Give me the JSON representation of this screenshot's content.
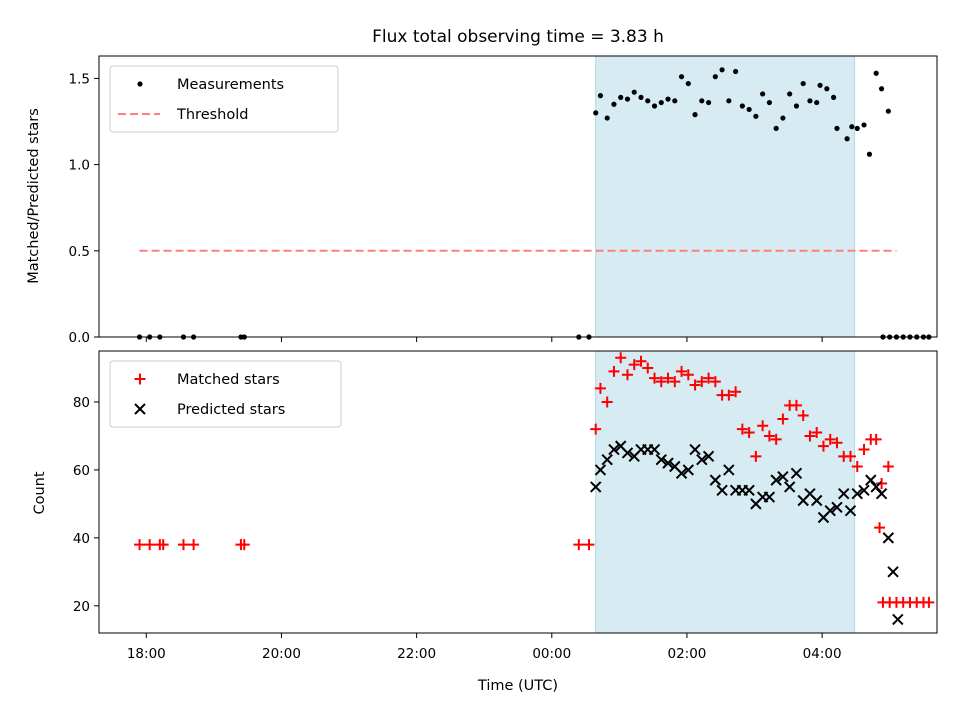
{
  "chart_data": [
    {
      "type": "scatter",
      "title": "Flux total observing time = 3.83 h",
      "xlabel": "",
      "ylabel": "Matched/Predicted stars",
      "xlim": [
        -0.7,
        11.7
      ],
      "ylim": [
        0,
        1.63
      ],
      "x_unit": "hours since 18:00 UTC",
      "yticks": [
        0.0,
        0.5,
        1.0,
        1.5
      ],
      "ytick_labels": [
        "0.0",
        "0.5",
        "1.0",
        "1.5"
      ],
      "shaded_region": [
        6.65,
        10.48
      ],
      "legend": {
        "position": "upper-left",
        "entries": [
          "Measurements",
          "Threshold"
        ]
      },
      "series": [
        {
          "name": "Measurements",
          "style": "dot",
          "color": "#000000",
          "points": [
            [
              -0.1,
              0
            ],
            [
              0.05,
              0
            ],
            [
              0.2,
              0
            ],
            [
              0.55,
              0
            ],
            [
              0.7,
              0
            ],
            [
              1.4,
              0
            ],
            [
              1.45,
              0
            ],
            [
              6.4,
              0
            ],
            [
              6.55,
              0
            ],
            [
              6.65,
              1.3
            ],
            [
              6.72,
              1.4
            ],
            [
              6.82,
              1.27
            ],
            [
              6.92,
              1.35
            ],
            [
              7.02,
              1.39
            ],
            [
              7.12,
              1.38
            ],
            [
              7.22,
              1.42
            ],
            [
              7.32,
              1.39
            ],
            [
              7.42,
              1.37
            ],
            [
              7.52,
              1.34
            ],
            [
              7.62,
              1.36
            ],
            [
              7.72,
              1.38
            ],
            [
              7.82,
              1.37
            ],
            [
              7.92,
              1.51
            ],
            [
              8.02,
              1.47
            ],
            [
              8.12,
              1.29
            ],
            [
              8.22,
              1.37
            ],
            [
              8.32,
              1.36
            ],
            [
              8.42,
              1.51
            ],
            [
              8.52,
              1.55
            ],
            [
              8.62,
              1.37
            ],
            [
              8.72,
              1.54
            ],
            [
              8.82,
              1.34
            ],
            [
              8.92,
              1.32
            ],
            [
              9.02,
              1.28
            ],
            [
              9.12,
              1.41
            ],
            [
              9.22,
              1.36
            ],
            [
              9.32,
              1.21
            ],
            [
              9.42,
              1.27
            ],
            [
              9.52,
              1.41
            ],
            [
              9.62,
              1.34
            ],
            [
              9.72,
              1.47
            ],
            [
              9.82,
              1.37
            ],
            [
              9.92,
              1.36
            ],
            [
              9.97,
              1.46
            ],
            [
              10.07,
              1.44
            ],
            [
              10.17,
              1.39
            ],
            [
              10.22,
              1.21
            ],
            [
              10.37,
              1.15
            ],
            [
              10.44,
              1.22
            ],
            [
              10.52,
              1.21
            ],
            [
              10.62,
              1.23
            ],
            [
              10.7,
              1.06
            ],
            [
              10.8,
              1.53
            ],
            [
              10.88,
              1.44
            ],
            [
              10.98,
              1.31
            ],
            [
              10.9,
              0
            ],
            [
              11.0,
              0
            ],
            [
              11.1,
              0
            ],
            [
              11.2,
              0
            ],
            [
              11.3,
              0
            ],
            [
              11.4,
              0
            ],
            [
              11.5,
              0
            ],
            [
              11.58,
              0
            ]
          ]
        },
        {
          "name": "Threshold",
          "style": "dashed-line",
          "color": "#ff7f7f",
          "points": [
            [
              -0.1,
              0.5
            ],
            [
              11.1,
              0.5
            ]
          ]
        }
      ]
    },
    {
      "type": "scatter",
      "title": "",
      "xlabel": "Time (UTC)",
      "ylabel": "Count",
      "xlim": [
        -0.7,
        11.7
      ],
      "ylim": [
        12,
        95
      ],
      "x_unit": "hours since 18:00 UTC",
      "xticks": [
        0,
        2,
        4,
        6,
        8,
        10
      ],
      "xtick_labels": [
        "18:00",
        "20:00",
        "22:00",
        "00:00",
        "02:00",
        "04:00"
      ],
      "yticks": [
        20,
        40,
        60,
        80
      ],
      "ytick_labels": [
        "20",
        "40",
        "60",
        "80"
      ],
      "shaded_region": [
        6.65,
        10.48
      ],
      "legend": {
        "position": "upper-left",
        "entries": [
          "Matched stars",
          "Predicted stars"
        ]
      },
      "series": [
        {
          "name": "Matched stars",
          "style": "plus",
          "color": "#ff0000",
          "points": [
            [
              -0.1,
              38
            ],
            [
              0.05,
              38
            ],
            [
              0.2,
              38
            ],
            [
              0.25,
              38
            ],
            [
              0.55,
              38
            ],
            [
              0.7,
              38
            ],
            [
              1.4,
              38
            ],
            [
              1.45,
              38
            ],
            [
              6.4,
              38
            ],
            [
              6.55,
              38
            ],
            [
              6.65,
              72
            ],
            [
              6.72,
              84
            ],
            [
              6.82,
              80
            ],
            [
              6.92,
              89
            ],
            [
              7.02,
              93
            ],
            [
              7.12,
              88
            ],
            [
              7.22,
              91
            ],
            [
              7.32,
              92
            ],
            [
              7.42,
              90
            ],
            [
              7.52,
              87
            ],
            [
              7.62,
              86
            ],
            [
              7.72,
              87
            ],
            [
              7.82,
              86
            ],
            [
              7.92,
              89
            ],
            [
              8.02,
              88
            ],
            [
              8.12,
              85
            ],
            [
              8.22,
              86
            ],
            [
              8.32,
              87
            ],
            [
              8.42,
              86
            ],
            [
              8.52,
              82
            ],
            [
              8.62,
              82
            ],
            [
              8.72,
              83
            ],
            [
              8.82,
              72
            ],
            [
              8.92,
              71
            ],
            [
              9.02,
              64
            ],
            [
              9.12,
              73
            ],
            [
              9.22,
              70
            ],
            [
              9.32,
              69
            ],
            [
              9.42,
              75
            ],
            [
              9.52,
              79
            ],
            [
              9.62,
              79
            ],
            [
              9.72,
              76
            ],
            [
              9.82,
              70
            ],
            [
              9.92,
              71
            ],
            [
              10.02,
              67
            ],
            [
              10.12,
              69
            ],
            [
              10.22,
              68
            ],
            [
              10.32,
              64
            ],
            [
              10.42,
              64
            ],
            [
              10.52,
              61
            ],
            [
              10.62,
              66
            ],
            [
              10.72,
              69
            ],
            [
              10.8,
              69
            ],
            [
              10.88,
              56
            ],
            [
              10.98,
              61
            ],
            [
              10.85,
              43
            ],
            [
              10.9,
              21
            ],
            [
              11.0,
              21
            ],
            [
              11.1,
              21
            ],
            [
              11.2,
              21
            ],
            [
              11.3,
              21
            ],
            [
              11.4,
              21
            ],
            [
              11.5,
              21
            ],
            [
              11.58,
              21
            ]
          ]
        },
        {
          "name": "Predicted stars",
          "style": "x",
          "color": "#000000",
          "points": [
            [
              6.65,
              55
            ],
            [
              6.72,
              60
            ],
            [
              6.82,
              63
            ],
            [
              6.92,
              66
            ],
            [
              7.02,
              67
            ],
            [
              7.12,
              65
            ],
            [
              7.22,
              64
            ],
            [
              7.32,
              66
            ],
            [
              7.42,
              66
            ],
            [
              7.52,
              66
            ],
            [
              7.62,
              63
            ],
            [
              7.72,
              62
            ],
            [
              7.82,
              61
            ],
            [
              7.92,
              59
            ],
            [
              8.02,
              60
            ],
            [
              8.12,
              66
            ],
            [
              8.22,
              63
            ],
            [
              8.32,
              64
            ],
            [
              8.42,
              57
            ],
            [
              8.52,
              54
            ],
            [
              8.62,
              60
            ],
            [
              8.72,
              54
            ],
            [
              8.82,
              54
            ],
            [
              8.92,
              54
            ],
            [
              9.02,
              50
            ],
            [
              9.12,
              52
            ],
            [
              9.22,
              52
            ],
            [
              9.32,
              57
            ],
            [
              9.42,
              58
            ],
            [
              9.52,
              55
            ],
            [
              9.62,
              59
            ],
            [
              9.72,
              51
            ],
            [
              9.82,
              53
            ],
            [
              9.92,
              51
            ],
            [
              10.02,
              46
            ],
            [
              10.12,
              48
            ],
            [
              10.22,
              49
            ],
            [
              10.32,
              53
            ],
            [
              10.42,
              48
            ],
            [
              10.52,
              53
            ],
            [
              10.62,
              54
            ],
            [
              10.72,
              57
            ],
            [
              10.8,
              55
            ],
            [
              10.88,
              53
            ],
            [
              10.98,
              40
            ],
            [
              11.05,
              30
            ],
            [
              11.12,
              16
            ]
          ]
        }
      ]
    }
  ]
}
